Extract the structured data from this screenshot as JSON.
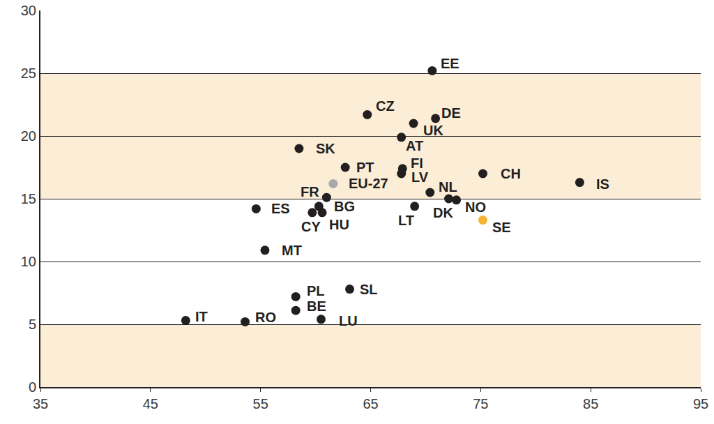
{
  "chart_data": {
    "type": "scatter",
    "labels": [
      "EE",
      "CZ",
      "DE",
      "UK",
      "AT",
      "SK",
      "PT",
      "FI",
      "LV",
      "CH",
      "IS",
      "EU-27",
      "FR",
      "NL",
      "DK",
      "NO",
      "ES",
      "BG",
      "CY",
      "HU",
      "LT",
      "SE",
      "MT",
      "PL",
      "SL",
      "BE",
      "IT",
      "RO",
      "LU"
    ],
    "x": [
      70.6,
      64.7,
      70.9,
      68.9,
      67.8,
      58.5,
      62.7,
      67.9,
      67.8,
      75.2,
      84.0,
      61.6,
      61.0,
      70.4,
      72.1,
      72.8,
      54.6,
      60.3,
      59.7,
      60.6,
      69.0,
      75.2,
      55.4,
      58.2,
      63.1,
      58.2,
      48.2,
      53.6,
      60.5
    ],
    "values": [
      25.2,
      21.7,
      21.4,
      21.0,
      19.9,
      19.0,
      17.5,
      17.4,
      17.0,
      17.0,
      16.3,
      16.2,
      15.1,
      15.5,
      15.0,
      14.9,
      14.2,
      14.4,
      13.9,
      13.9,
      14.4,
      13.3,
      10.9,
      7.2,
      7.8,
      6.1,
      5.3,
      5.2,
      5.4
    ],
    "colors": [
      "#231f20",
      "#231f20",
      "#231f20",
      "#231f20",
      "#231f20",
      "#231f20",
      "#231f20",
      "#231f20",
      "#231f20",
      "#231f20",
      "#231f20",
      "#a7a9ac",
      "#231f20",
      "#231f20",
      "#231f20",
      "#231f20",
      "#231f20",
      "#231f20",
      "#231f20",
      "#231f20",
      "#231f20",
      "#f7b335",
      "#231f20",
      "#231f20",
      "#231f20",
      "#231f20",
      "#231f20",
      "#231f20",
      "#231f20"
    ],
    "xlim": [
      35,
      95
    ],
    "xticks": [
      35,
      45,
      55,
      65,
      75,
      85,
      95
    ],
    "ylim": [
      0,
      30
    ],
    "yticks": [
      0,
      5,
      10,
      15,
      20,
      25,
      30
    ],
    "grid": true
  }
}
